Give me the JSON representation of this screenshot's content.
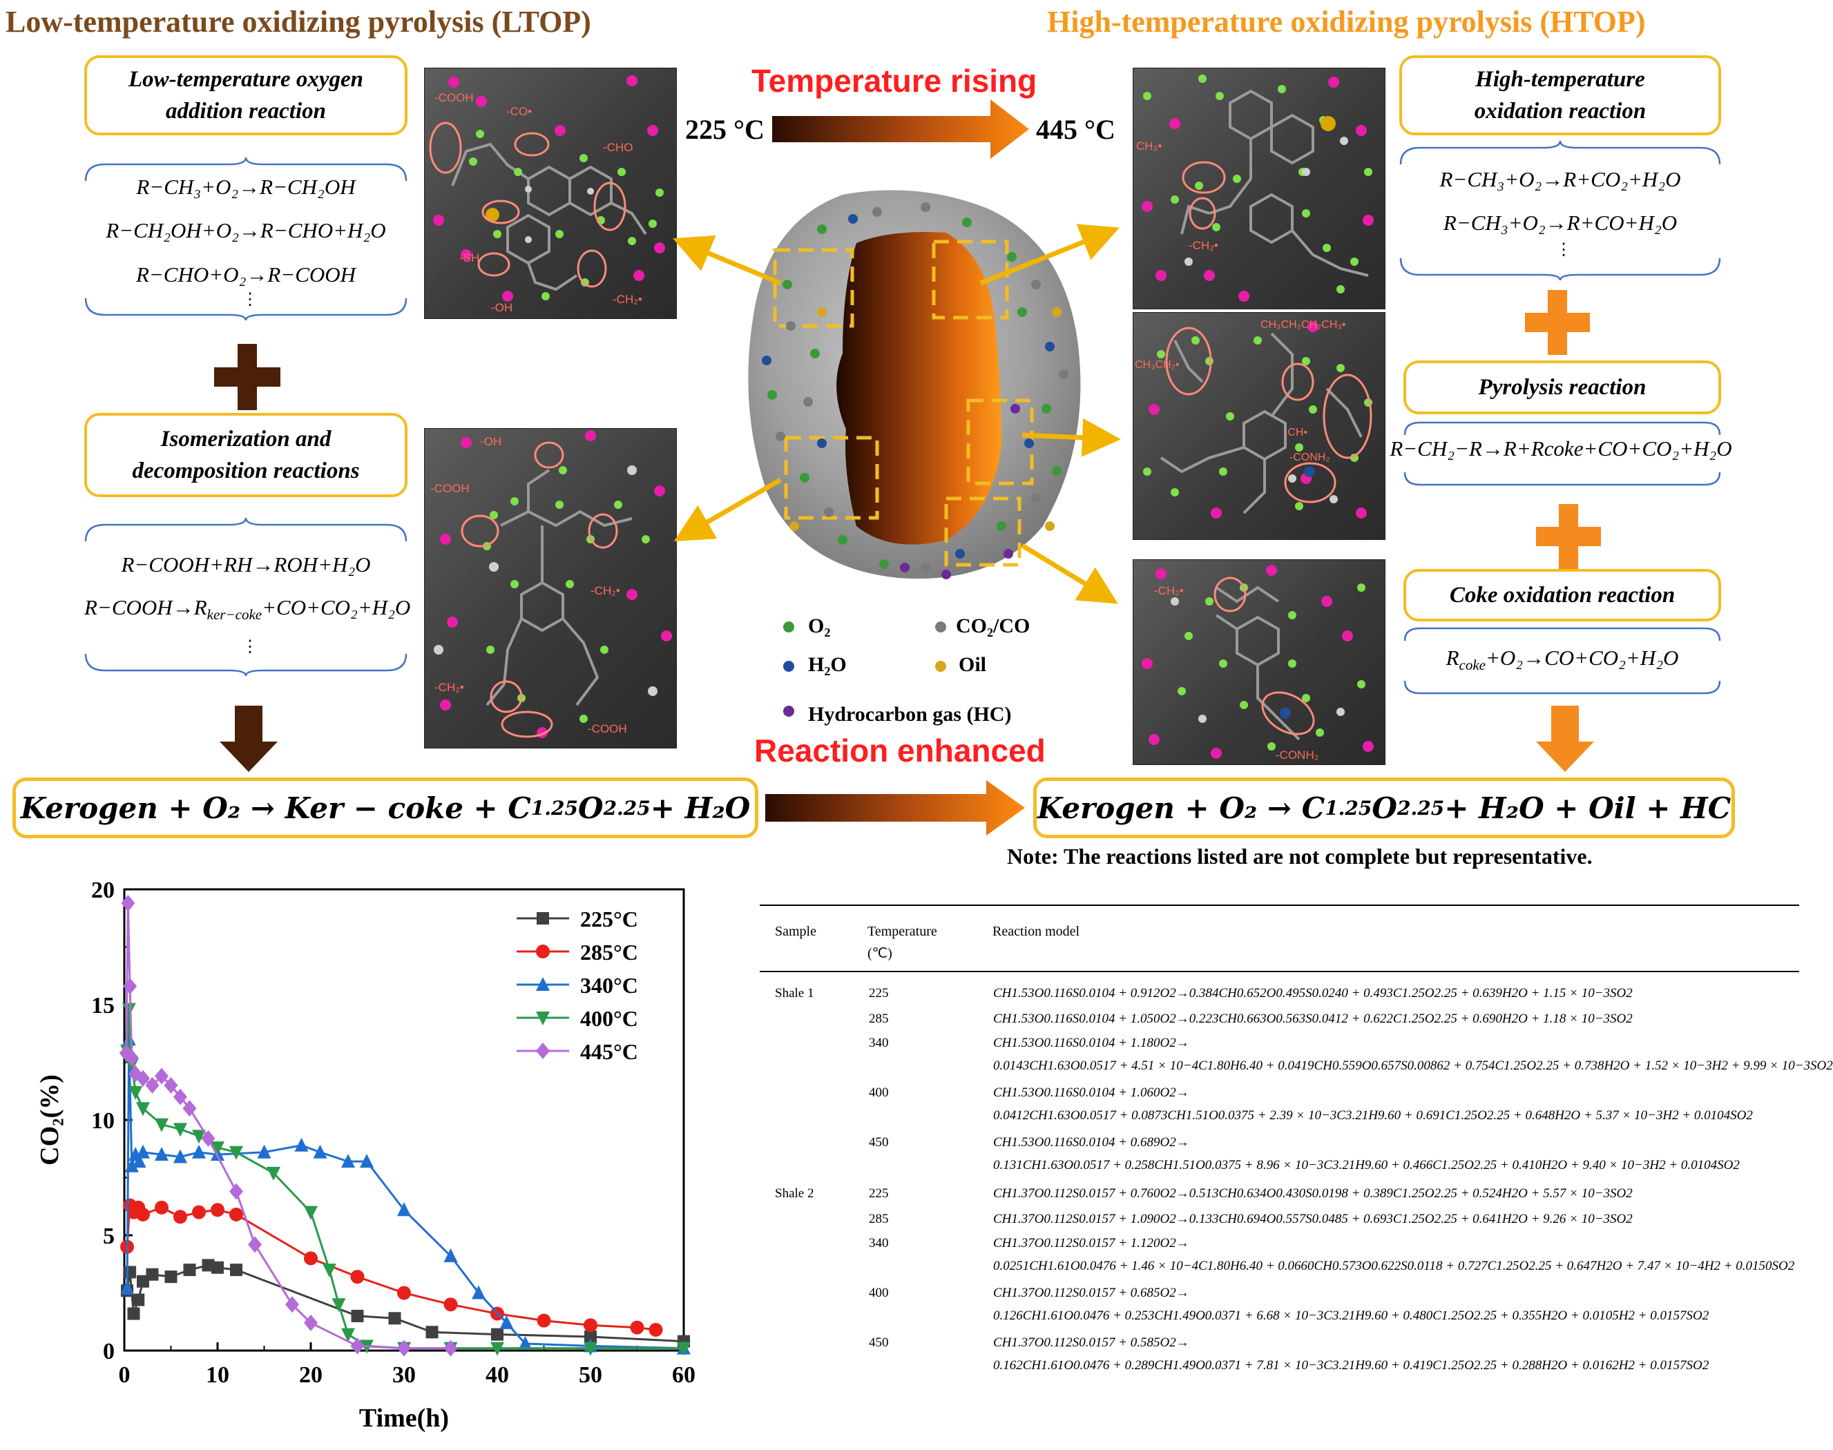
{
  "titles": {
    "ltop": "Low-temperature oxidizing pyrolysis (LTOP)",
    "htop": "High-temperature oxidizing pyrolysis (HTOP)",
    "temp_rising": "Temperature rising",
    "temp_low": "225 °C",
    "temp_high": "445 °C",
    "reaction_enhanced": "Reaction enhanced",
    "note": "Note: The reactions listed are not complete but representative."
  },
  "left": {
    "box1": "Low-temperature oxygen addition reaction",
    "eqs1": [
      "R−CH₃+O₂→R−CH₂OH",
      "R−CH₂OH+O₂→R−CHO+H₂O",
      "R−CHO+O₂→R−COOH"
    ],
    "box2": "Isomerization and decomposition reactions",
    "eqs2": [
      "R−COOH+RH→ROH+H₂O",
      "R−COOH→R",
      "ker−coke",
      "+CO+CO₂+H₂O"
    ],
    "dots": "⋮",
    "final": "Kerogen + O₂ → Ker − coke + C",
    "final_sub1": "1.25",
    "final_mid": "O",
    "final_sub2": "2.25",
    "final_end": " + H₂O"
  },
  "right": {
    "box1": "High-temperature oxidation reaction",
    "eqs1": [
      "R−CH₃+O₂→R+CO₂+H₂O",
      "R−CH₃+O₂→R+CO+H₂O"
    ],
    "box2": "Pyrolysis reaction",
    "eq2": "R−CH₂−R→R+Rcoke+CO+CO₂+H₂O",
    "box3": "Coke oxidation reaction",
    "eq3a": "R",
    "eq3sub": "coke",
    "eq3b": "+O₂→CO+CO₂+H₂O",
    "dots": "⋮",
    "final": "Kerogen + O₂ → C",
    "final_sub1": "1.25",
    "final_mid": "O",
    "final_sub2": "2.25",
    "final_end": " + H₂O + Oil + HC"
  },
  "molecule_labels": {
    "tl": [
      "-COOH",
      "-CO•",
      "-CHO",
      "-SH",
      "-OH",
      "-CH₂•"
    ],
    "bl": [
      "-OH",
      "-COOH",
      "-CH₂•",
      "-CH₂•",
      "-COOH"
    ],
    "tr": [
      "CH₃•",
      "-CH₂•"
    ],
    "mr": [
      "CH₃CH₂CH₂CH₃•",
      "CH₃CH₂•",
      "-CH•",
      "-CONH₂"
    ],
    "br": [
      "-CH₂•",
      "-CONH₂"
    ]
  },
  "legend": {
    "o2": "O₂",
    "co2co": "CO₂/CO",
    "h2o": "H₂O",
    "oil": "Oil",
    "hc": "Hydrocarbon gas (HC)",
    "colors": {
      "o2": "#3a9a3a",
      "co2co": "#7a7a7a",
      "h2o": "#1f4e9a",
      "oil": "#d9a51a",
      "hc": "#6a2a9a"
    }
  },
  "chart_data": {
    "type": "line",
    "xlabel": "Time(h)",
    "ylabel": "CO₂(%)",
    "xlim": [
      0,
      60
    ],
    "ylim": [
      0,
      20
    ],
    "xticks": [
      0,
      10,
      20,
      30,
      40,
      50,
      60
    ],
    "yticks": [
      0,
      5,
      10,
      15,
      20
    ],
    "series": [
      {
        "name": "225°C",
        "color": "#404040",
        "marker": "square",
        "x": [
          0.3,
          0.6,
          1,
          1.5,
          2,
          3,
          5,
          7,
          9,
          10,
          12,
          25,
          29,
          33,
          40,
          50,
          60
        ],
        "y": [
          2.6,
          3.4,
          1.6,
          2.2,
          3.0,
          3.3,
          3.2,
          3.5,
          3.7,
          3.6,
          3.5,
          1.5,
          1.4,
          0.8,
          0.7,
          0.6,
          0.4
        ]
      },
      {
        "name": "285°C",
        "color": "#e8201a",
        "marker": "circle",
        "x": [
          0.3,
          0.6,
          1,
          1.5,
          2,
          4,
          6,
          8,
          10,
          12,
          20,
          25,
          30,
          35,
          40,
          45,
          50,
          55,
          57
        ],
        "y": [
          4.5,
          6.3,
          6.0,
          6.2,
          5.9,
          6.2,
          5.8,
          6.0,
          6.1,
          5.9,
          4.0,
          3.2,
          2.5,
          2.0,
          1.6,
          1.3,
          1.1,
          1.0,
          0.9
        ]
      },
      {
        "name": "340°C",
        "color": "#1f6fd0",
        "marker": "triangle-up",
        "x": [
          0.3,
          0.5,
          0.8,
          1.2,
          1.6,
          2,
          4,
          6,
          8,
          10,
          15,
          19,
          21,
          24,
          26,
          30,
          35,
          38,
          41,
          43,
          50,
          60
        ],
        "y": [
          2.7,
          13.5,
          8.0,
          8.5,
          8.2,
          8.6,
          8.5,
          8.4,
          8.6,
          8.5,
          8.6,
          8.9,
          8.6,
          8.2,
          8.2,
          6.1,
          4.1,
          2.5,
          1.2,
          0.3,
          0.2,
          0.1
        ]
      },
      {
        "name": "400°C",
        "color": "#2a9a4a",
        "marker": "triangle-down",
        "x": [
          0.3,
          0.5,
          0.8,
          1.2,
          2,
          4,
          6,
          8,
          10,
          12,
          16,
          20,
          22,
          23,
          24,
          26,
          30,
          35,
          40,
          50,
          60
        ],
        "y": [
          13.0,
          14.8,
          12.4,
          11.2,
          10.5,
          9.8,
          9.6,
          9.3,
          8.8,
          8.6,
          7.7,
          6.0,
          3.5,
          2.0,
          0.7,
          0.2,
          0.1,
          0.1,
          0.1,
          0.1,
          0.1
        ]
      },
      {
        "name": "445°C",
        "color": "#b46ad8",
        "marker": "diamond",
        "x": [
          0.2,
          0.4,
          0.6,
          0.8,
          1.2,
          2,
          3,
          4,
          5,
          6,
          7,
          9,
          12,
          14,
          18,
          20,
          25,
          30,
          35
        ],
        "y": [
          12.9,
          19.4,
          15.8,
          12.7,
          12.0,
          11.8,
          11.5,
          11.9,
          11.5,
          11.0,
          10.5,
          9.2,
          6.9,
          4.6,
          2.0,
          1.2,
          0.2,
          0.1,
          0.1
        ]
      }
    ]
  },
  "table": {
    "headers": {
      "sample": "Sample",
      "temperature": "Temperature",
      "temp_unit": "(℃)",
      "model": "Reaction model"
    },
    "rows": [
      {
        "sample": "Shale 1",
        "t": "225",
        "l1": "CH1.53O0.116S0.0104 + 0.912O2→0.384CH0.652O0.495S0.0240 + 0.493C1.25O2.25 + 0.639H2O + 1.15 × 10−3SO2",
        "l2": ""
      },
      {
        "sample": "",
        "t": "285",
        "l1": "CH1.53O0.116S0.0104 + 1.050O2→0.223CH0.663O0.563S0.0412 + 0.622C1.25O2.25 + 0.690H2O + 1.18 × 10−3SO2",
        "l2": ""
      },
      {
        "sample": "",
        "t": "340",
        "l1": "CH1.53O0.116S0.0104 + 1.180O2→",
        "l2": "0.0143CH1.63O0.0517 + 4.51 × 10−4C1.80H6.40 + 0.0419CH0.559O0.657S0.00862 + 0.754C1.25O2.25 + 0.738H2O + 1.52 × 10−3H2 + 9.99 × 10−3SO2"
      },
      {
        "sample": "",
        "t": "400",
        "l1": "CH1.53O0.116S0.0104 + 1.060O2→",
        "l2": "0.0412CH1.63O0.0517 + 0.0873CH1.51O0.0375 + 2.39 × 10−3C3.21H9.60 + 0.691C1.25O2.25 + 0.648H2O + 5.37 × 10−3H2 + 0.0104SO2"
      },
      {
        "sample": "",
        "t": "450",
        "l1": "CH1.53O0.116S0.0104 + 0.689O2→",
        "l2": "0.131CH1.63O0.0517 + 0.258CH1.51O0.0375 + 8.96 × 10−3C3.21H9.60 + 0.466C1.25O2.25 + 0.410H2O + 9.40 × 10−3H2 + 0.0104SO2"
      },
      {
        "sample": "Shale 2",
        "t": "225",
        "l1": "CH1.37O0.112S0.0157 + 0.760O2→0.513CH0.634O0.430S0.0198 + 0.389C1.25O2.25 + 0.524H2O + 5.57 × 10−3SO2",
        "l2": ""
      },
      {
        "sample": "",
        "t": "285",
        "l1": "CH1.37O0.112S0.0157 + 1.090O2→0.133CH0.694O0.557S0.0485 + 0.693C1.25O2.25 + 0.641H2O + 9.26 × 10−3SO2",
        "l2": ""
      },
      {
        "sample": "",
        "t": "340",
        "l1": "CH1.37O0.112S0.0157 + 1.120O2→",
        "l2": "0.0251CH1.61O0.0476 + 1.46 × 10−4C1.80H6.40 + 0.0660CH0.573O0.622S0.0118 + 0.727C1.25O2.25 + 0.647H2O + 7.47 × 10−4H2 + 0.0150SO2"
      },
      {
        "sample": "",
        "t": "400",
        "l1": "CH1.37O0.112S0.0157 + 0.685O2→",
        "l2": "0.126CH1.61O0.0476 + 0.253CH1.49O0.0371 + 6.68 × 10−3C3.21H9.60 + 0.480C1.25O2.25 + 0.355H2O + 0.0105H2 + 0.0157SO2"
      },
      {
        "sample": "",
        "t": "450",
        "l1": "CH1.37O0.112S0.0157 + 0.585O2→",
        "l2": "0.162CH1.61O0.0476 + 0.289CH1.49O0.0371 + 7.81 × 10−3C3.21H9.60 + 0.419C1.25O2.25 + 0.288H2O + 0.0162H2 + 0.0157SO2"
      }
    ]
  }
}
